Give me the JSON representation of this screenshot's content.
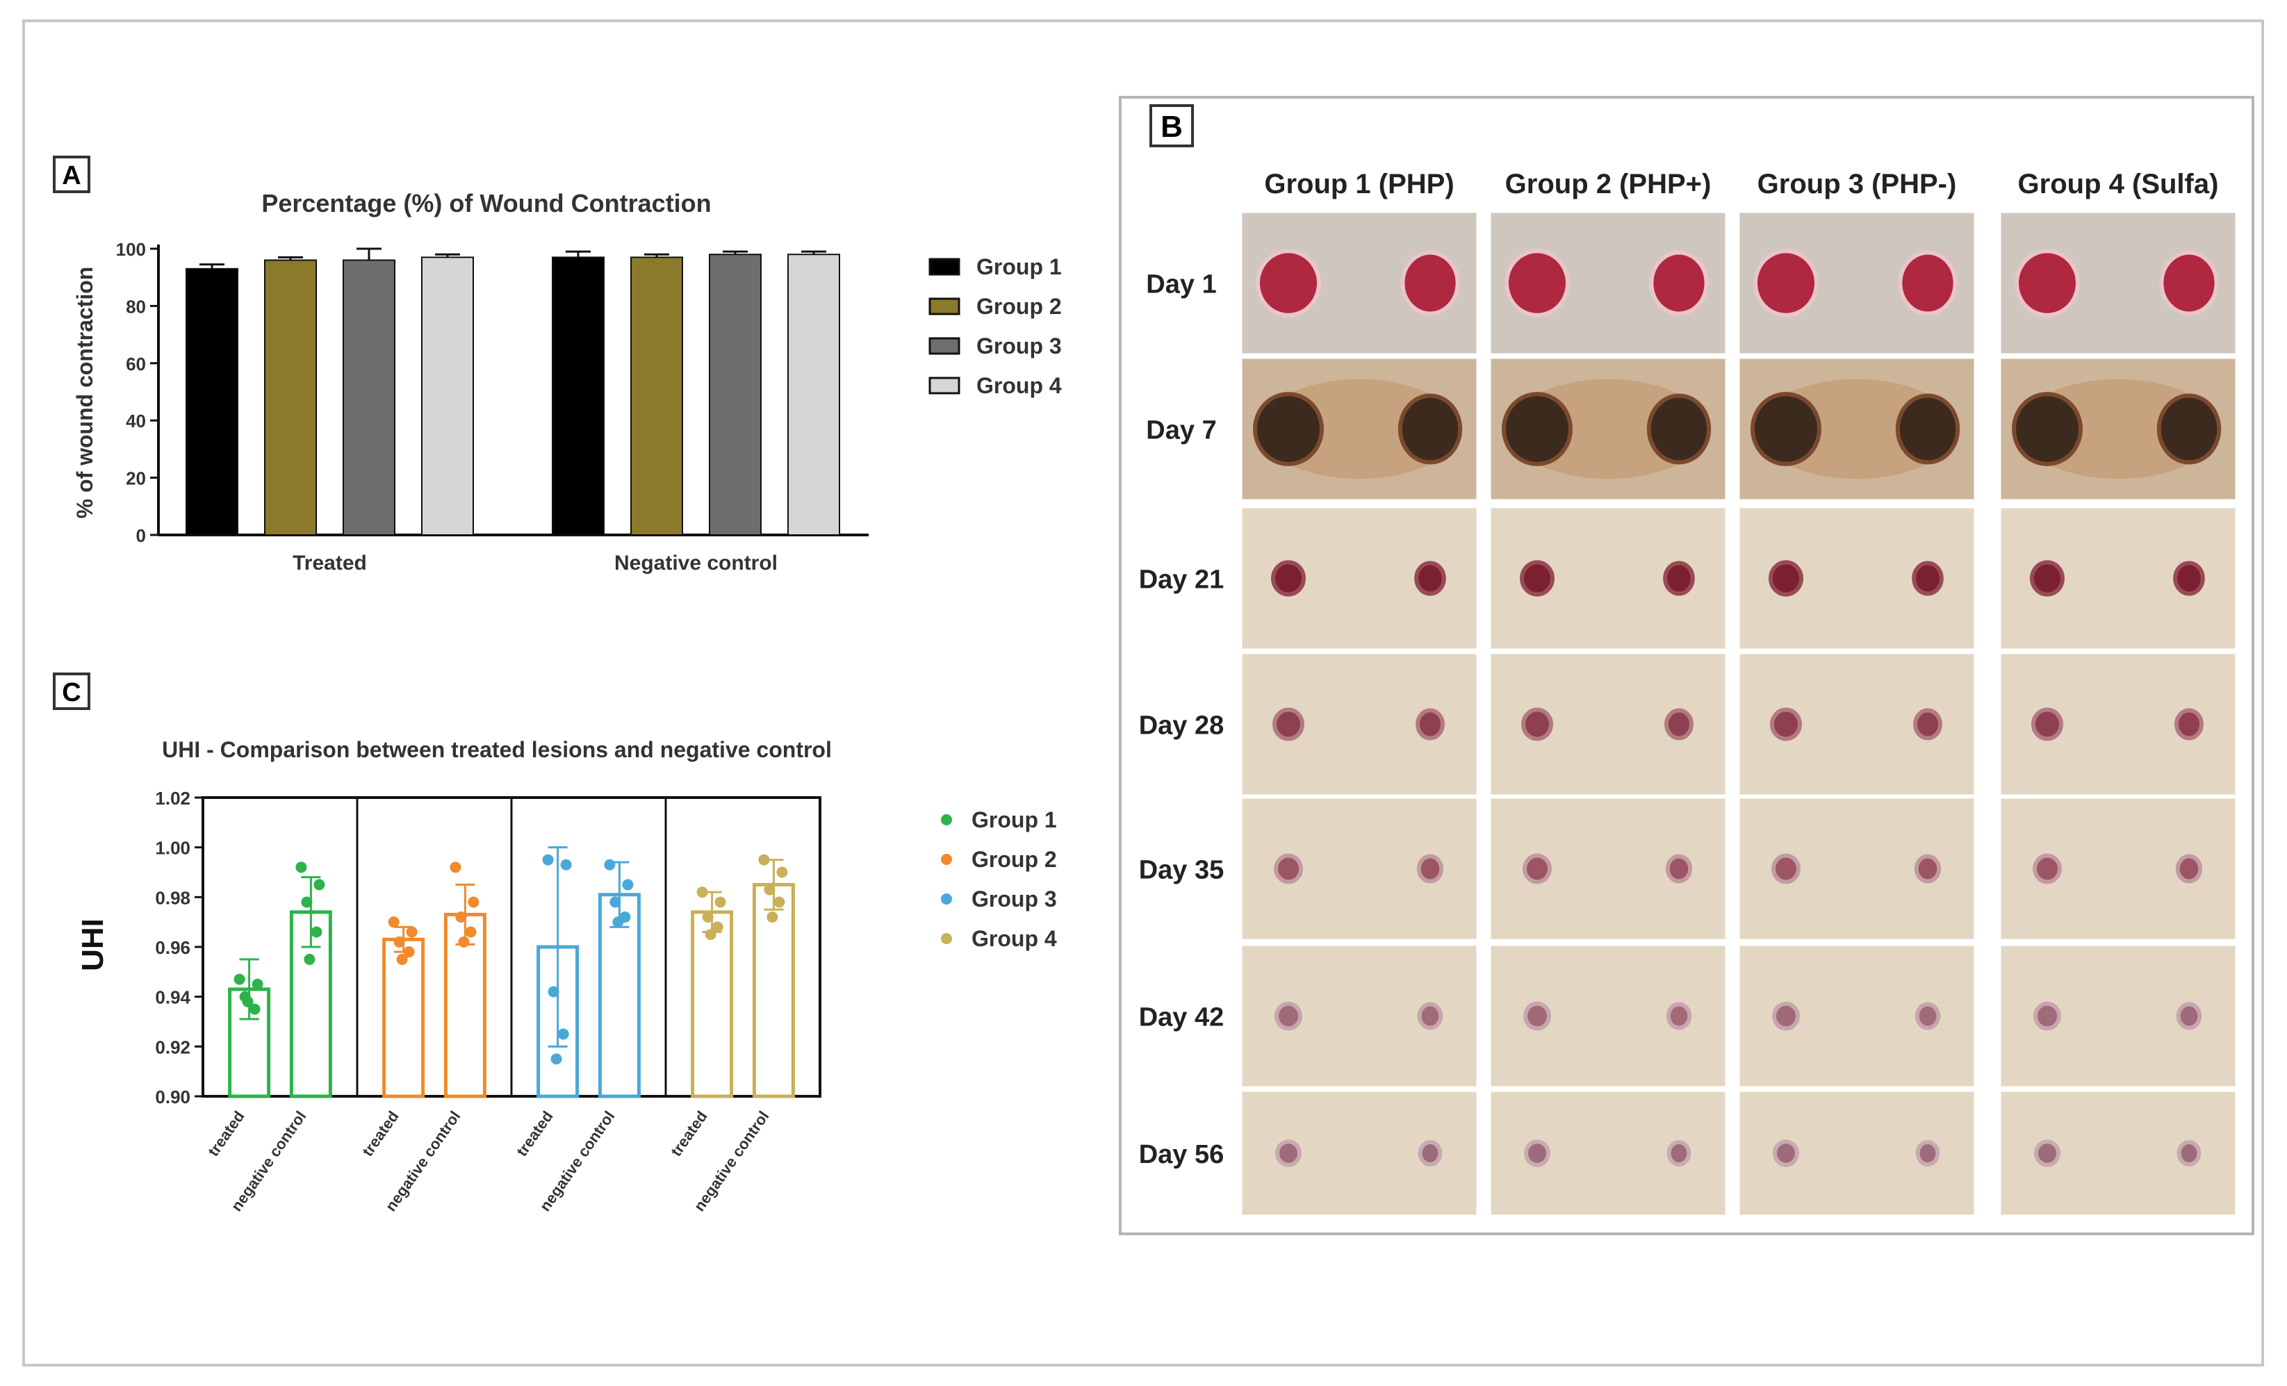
{
  "panel_a": {
    "letter": "A",
    "chart_data": {
      "type": "bar",
      "title": "Percentage (%) of Wound Contraction",
      "ylabel": "% of wound contraction",
      "xlabel": "",
      "ylim": [
        0,
        100
      ],
      "yticks": [
        0,
        20,
        40,
        60,
        80,
        100
      ],
      "categories": [
        "Treated",
        "Negative control"
      ],
      "series": [
        {
          "name": "Group 1",
          "color": "#000000",
          "values": [
            93,
            97
          ],
          "errors": [
            1.5,
            2
          ]
        },
        {
          "name": "Group 2",
          "color": "#8a7a2a",
          "values": [
            96,
            97
          ],
          "errors": [
            1,
            1
          ]
        },
        {
          "name": "Group 3",
          "color": "#6e6e6e",
          "values": [
            96,
            98
          ],
          "errors": [
            4,
            1
          ]
        },
        {
          "name": "Group 4",
          "color": "#d6d6d6",
          "values": [
            97,
            98
          ],
          "errors": [
            1,
            1
          ]
        }
      ],
      "legend": "right",
      "grid": false
    }
  },
  "panel_b": {
    "letter": "B",
    "columns": [
      "Group 1 (PHP)",
      "Group 2 (PHP+)",
      "Group 3 (PHP-)",
      "Group 4 (Sulfa)"
    ],
    "rows": [
      "Day 1",
      "Day 7",
      "Day 21",
      "Day 28",
      "Day 35",
      "Day 42",
      "Day 56"
    ]
  },
  "panel_c": {
    "letter": "C",
    "chart_data": {
      "type": "bar",
      "title": "UHI - Comparison between treated lesions and negative control",
      "ylabel": "UHI",
      "xlabel": "",
      "ylim": [
        0.9,
        1.02
      ],
      "yticks": [
        0.9,
        0.92,
        0.94,
        0.96,
        0.98,
        1.0,
        1.02
      ],
      "ytick_labels": [
        "0.90",
        "0.92",
        "0.94",
        "0.96",
        "0.98",
        "1.00",
        "1.02"
      ],
      "categories": [
        "treated",
        "negative control"
      ],
      "series": [
        {
          "name": "Group 1",
          "color": "#2db34a",
          "values": [
            0.943,
            0.974
          ],
          "errors": [
            0.012,
            0.014
          ],
          "points": [
            [
              0.947,
              0.945,
              0.94,
              0.935,
              0.938
            ],
            [
              0.992,
              0.985,
              0.978,
              0.966,
              0.955
            ]
          ]
        },
        {
          "name": "Group 2",
          "color": "#f08a2c",
          "values": [
            0.963,
            0.973
          ],
          "errors": [
            0.005,
            0.012
          ],
          "points": [
            [
              0.97,
              0.966,
              0.962,
              0.958,
              0.955
            ],
            [
              0.992,
              0.978,
              0.972,
              0.966,
              0.962
            ]
          ]
        },
        {
          "name": "Group 3",
          "color": "#4aa8d8",
          "values": [
            0.96,
            0.981
          ],
          "errors": [
            0.04,
            0.013
          ],
          "points": [
            [
              0.995,
              0.993,
              0.942,
              0.925,
              0.915
            ],
            [
              0.993,
              0.985,
              0.978,
              0.972,
              0.97
            ]
          ]
        },
        {
          "name": "Group 4",
          "color": "#c9b05a",
          "values": [
            0.974,
            0.985
          ],
          "errors": [
            0.008,
            0.01
          ],
          "points": [
            [
              0.982,
              0.978,
              0.972,
              0.968,
              0.965
            ],
            [
              0.995,
              0.99,
              0.983,
              0.978,
              0.972
            ]
          ]
        }
      ],
      "legend": "right",
      "grid": false
    }
  }
}
